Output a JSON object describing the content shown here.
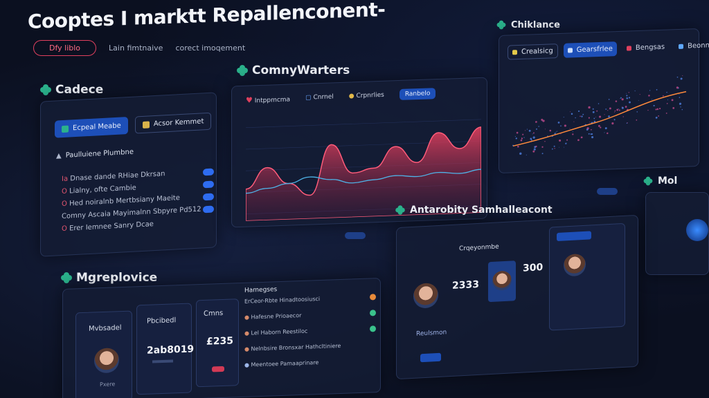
{
  "header": {
    "title": "Cooptes I marktt Repallenconent-",
    "tabs": [
      {
        "label": "Dfy liblo",
        "active": true
      },
      {
        "label": "Lain fimtnaive",
        "active": false
      },
      {
        "label": "corect imoqement",
        "active": false
      }
    ]
  },
  "cadece": {
    "title": "Cadece",
    "buttons": {
      "primary": "Ecpeal Meabe",
      "secondary": "Acsor Kemmet"
    },
    "section_label": "Paulluiene Plumbne",
    "tasks": [
      {
        "prefix": "Ia",
        "text": "Dnase dande RHiae Dkrsan"
      },
      {
        "prefix": "O",
        "text": "Lialny, ofte Cambie"
      },
      {
        "prefix": "O",
        "text": "Hed noiralnb Mertbsiany Maeite"
      },
      {
        "prefix": "",
        "text": "Comny Ascaia Mayimalnn Sbpyre Pd512"
      },
      {
        "prefix": "O",
        "text": "Erer Iemnee Sanry Dcae"
      }
    ]
  },
  "chart": {
    "title": "ComnyWarters",
    "tabs": [
      "Intppmcma",
      "Cnrnel",
      "Crpnrlies",
      "Ranbelo"
    ],
    "chart_data": {
      "type": "area",
      "series": [
        {
          "values": [
            0.3,
            0.55,
            0.35,
            0.2,
            0.8,
            0.45,
            0.5,
            0.75,
            0.55,
            0.9,
            0.7,
            0.95
          ]
        },
        {
          "values": [
            0.25,
            0.3,
            0.35,
            0.42,
            0.38,
            0.33,
            0.36,
            0.4,
            0.38,
            0.42,
            0.4,
            0.44
          ]
        }
      ]
    }
  },
  "chiklance": {
    "title": "Chiklance",
    "tabs": [
      "Crealsicg",
      "Gearsfrlee",
      "Bengsas",
      "Beonnestre"
    ]
  },
  "mgreplovice": {
    "title": "Mgreplovice",
    "cards": [
      {
        "label": "Mvbsadel",
        "name": "Pxere"
      },
      {
        "label": "Pbcibedl",
        "value": "2ab8019"
      },
      {
        "label": "Cmns",
        "value": "£235"
      }
    ],
    "list_header": "Hamegses",
    "list_items": [
      "ErCeor-Rbte Hinadtoosiusci",
      "Hafesne Prioaecor",
      "Lel Haborn Reestiloc",
      "Nelnbsire Bronsxar Hathcltiniere",
      "Meentoee Pamaaprinare"
    ]
  },
  "antarobity": {
    "title": "Antarobity Samhalleacont",
    "card_title": "Crqeyonmbe",
    "values": [
      "2333",
      "300"
    ],
    "footer_label": "Reulsmon"
  },
  "mol": {
    "title": "Mol"
  }
}
